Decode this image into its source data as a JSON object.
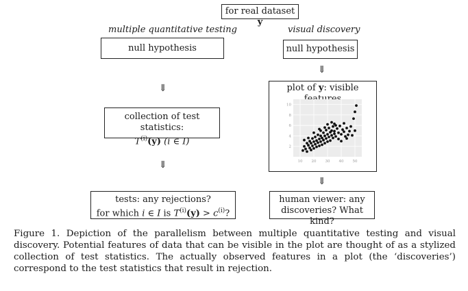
{
  "top_box": {
    "text": "for real dataset ",
    "bold_var": "y"
  },
  "left_column": {
    "heading": "multiple quantitative testing",
    "null_box": "null hypothesis",
    "stats_line1": "collection of test statistics:",
    "stats_formula_T": "T",
    "stats_formula_sup": "(i)",
    "stats_formula_y": "(y)",
    "stats_formula_rest": "(i ∈ I)",
    "tests_line1": "tests: any rejections?",
    "tests_line2_pre": "for which ",
    "tests_line2_iI": "i ∈ I",
    "tests_line2_is": " is ",
    "tests_line2_gt": " > c",
    "tests_line2_end": "?"
  },
  "right_column": {
    "heading": "visual discovery",
    "null_box": "null hypothesis",
    "plot_title_pre": "plot of ",
    "plot_title_var": "y",
    "plot_title_post": ": visible features",
    "human_line1": "human viewer: any",
    "human_line2": "discoveries? What kind?"
  },
  "arrow_glyph": "⇓",
  "chart_data": {
    "type": "scatter",
    "x_ticks": [
      "10",
      "20",
      "30",
      "40",
      "50"
    ],
    "y_ticks": [
      "2",
      "4",
      "6",
      "8",
      "10"
    ],
    "xlim": [
      5,
      55
    ],
    "ylim": [
      0,
      11
    ],
    "grid": true,
    "points": [
      [
        12,
        1.2
      ],
      [
        13,
        2.0
      ],
      [
        14,
        1.5
      ],
      [
        15,
        2.6
      ],
      [
        15,
        1.0
      ],
      [
        16,
        2.2
      ],
      [
        17,
        3.0
      ],
      [
        17,
        1.7
      ],
      [
        18,
        2.6
      ],
      [
        18,
        1.3
      ],
      [
        19,
        3.5
      ],
      [
        19,
        2.1
      ],
      [
        20,
        2.9
      ],
      [
        20,
        1.6
      ],
      [
        21,
        3.8
      ],
      [
        21,
        2.4
      ],
      [
        22,
        3.1
      ],
      [
        22,
        1.9
      ],
      [
        23,
        4.2
      ],
      [
        23,
        2.7
      ],
      [
        24,
        3.4
      ],
      [
        24,
        2.1
      ],
      [
        25,
        4.0
      ],
      [
        25,
        2.9
      ],
      [
        26,
        3.6
      ],
      [
        26,
        2.3
      ],
      [
        27,
        4.6
      ],
      [
        27,
        3.2
      ],
      [
        28,
        4.0
      ],
      [
        28,
        2.6
      ],
      [
        29,
        5.1
      ],
      [
        29,
        3.5
      ],
      [
        30,
        4.3
      ],
      [
        30,
        2.9
      ],
      [
        31,
        5.5
      ],
      [
        31,
        3.8
      ],
      [
        32,
        4.7
      ],
      [
        32,
        3.1
      ],
      [
        33,
        5.0
      ],
      [
        33,
        4.1
      ],
      [
        34,
        5.8
      ],
      [
        34,
        3.6
      ],
      [
        35,
        4.9
      ],
      [
        35,
        4.4
      ],
      [
        36,
        6.0
      ],
      [
        36,
        3.9
      ],
      [
        37,
        5.4
      ],
      [
        38,
        4.6
      ],
      [
        39,
        5.9
      ],
      [
        40,
        4.3
      ],
      [
        41,
        5.2
      ],
      [
        42,
        4.8
      ],
      [
        43,
        3.9
      ],
      [
        44,
        5.5
      ],
      [
        45,
        4.2
      ],
      [
        46,
        4.9
      ],
      [
        48,
        4.1
      ],
      [
        50,
        5.0
      ],
      [
        30,
        6.2
      ],
      [
        33,
        6.6
      ],
      [
        35,
        6.3
      ],
      [
        28,
        5.6
      ],
      [
        25,
        5.0
      ],
      [
        38,
        3.4
      ],
      [
        40,
        3.0
      ],
      [
        20,
        4.6
      ],
      [
        16,
        3.6
      ],
      [
        24,
        5.3
      ],
      [
        13,
        3.2
      ],
      [
        42,
        6.4
      ],
      [
        44,
        3.5
      ],
      [
        47,
        5.8
      ],
      [
        49,
        7.3
      ],
      [
        50,
        8.6
      ],
      [
        51,
        9.8
      ]
    ]
  }
}
